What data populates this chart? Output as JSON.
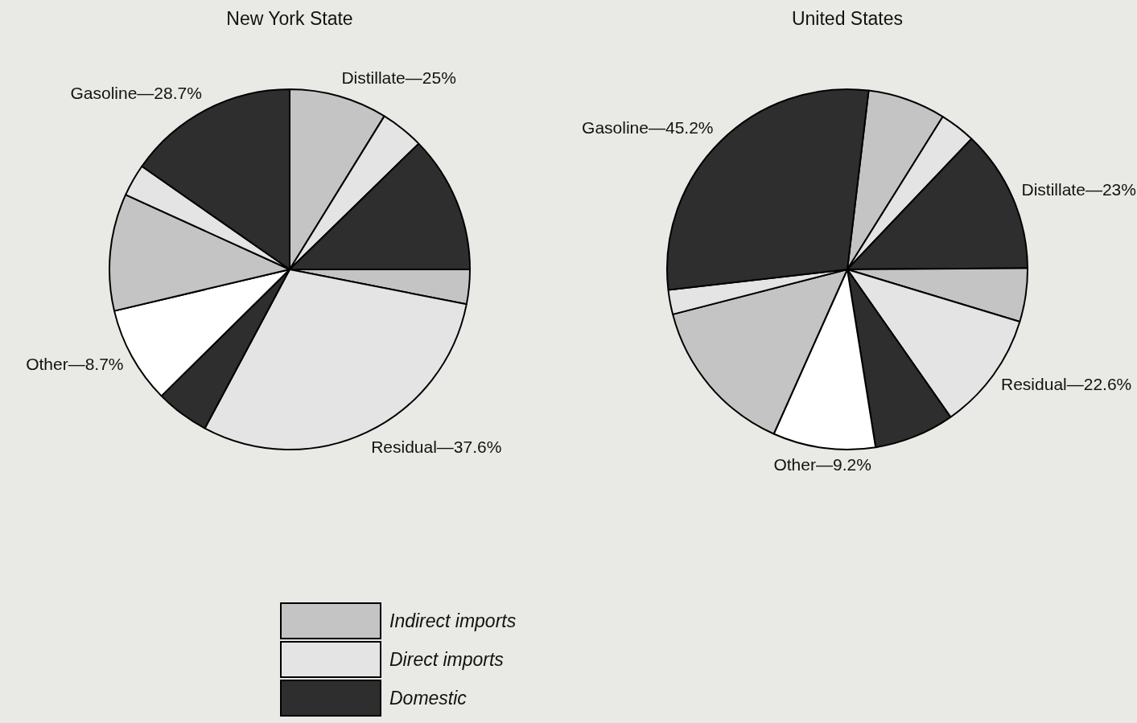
{
  "chart_data": [
    {
      "type": "pie",
      "title": "New York State",
      "categories": [
        "Distillate—25%",
        null,
        null,
        null,
        "Residual—37.6%",
        null,
        "Other—8.7%",
        null,
        null,
        "Gasoline—28.7%"
      ],
      "values": [
        8.8,
        3.9,
        12.3,
        3.1,
        29.7,
        4.8,
        8.7,
        10.5,
        2.9,
        15.3
      ],
      "colors": [
        "#c4c4c4",
        "#e4e4e4",
        "#2e2e2e",
        "#c4c4c4",
        "#e4e4e4",
        "#2e2e2e",
        "#ffffff",
        "#c4c4c4",
        "#e4e4e4",
        "#2e2e2e"
      ],
      "annotations": [
        "Indirect imports",
        "Direct imports",
        "Domestic"
      ]
    },
    {
      "type": "pie",
      "title": "United States",
      "categories": [
        null,
        null,
        "Distillate—23%",
        null,
        "Residual—22.6%",
        null,
        "Other—9.2%",
        null,
        null,
        "Gasoline—45.2%"
      ],
      "values": [
        7.0,
        3.2,
        12.8,
        4.8,
        10.6,
        7.2,
        9.2,
        14.3,
        2.2,
        28.7
      ],
      "colors": [
        "#c4c4c4",
        "#e4e4e4",
        "#2e2e2e",
        "#c4c4c4",
        "#e4e4e4",
        "#2e2e2e",
        "#ffffff",
        "#c4c4c4",
        "#e4e4e4",
        "#2e2e2e"
      ]
    }
  ]
}
